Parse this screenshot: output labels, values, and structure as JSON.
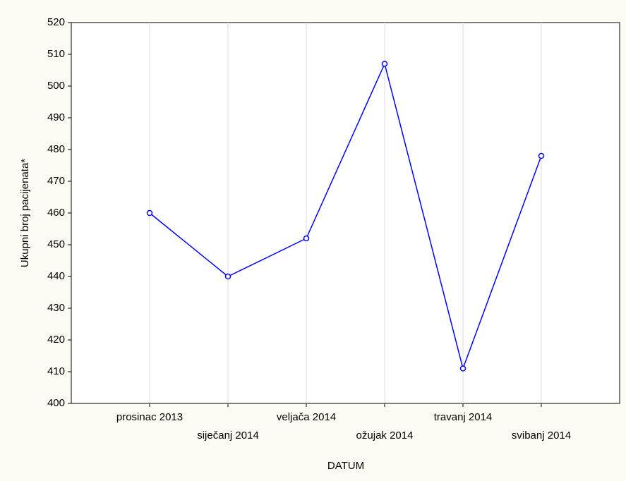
{
  "chart_data": {
    "type": "line",
    "x_label": "DATUM",
    "y_label": "Ukupni broj pacijenata*",
    "categories": [
      "prosinac 2013",
      "siječanj 2014",
      "veljača 2014",
      "ožujak 2014",
      "travanj 2014",
      "svibanj 2014"
    ],
    "series": [
      {
        "name": "Ukupni broj pacijenata*",
        "color": "#0000ff",
        "values": [
          460,
          440,
          452,
          507,
          411,
          478
        ]
      }
    ],
    "ylim": [
      400,
      520
    ],
    "yticks": [
      400,
      410,
      420,
      430,
      440,
      450,
      460,
      470,
      480,
      490,
      500,
      510,
      520
    ],
    "x_grid": true,
    "y_grid": false
  }
}
